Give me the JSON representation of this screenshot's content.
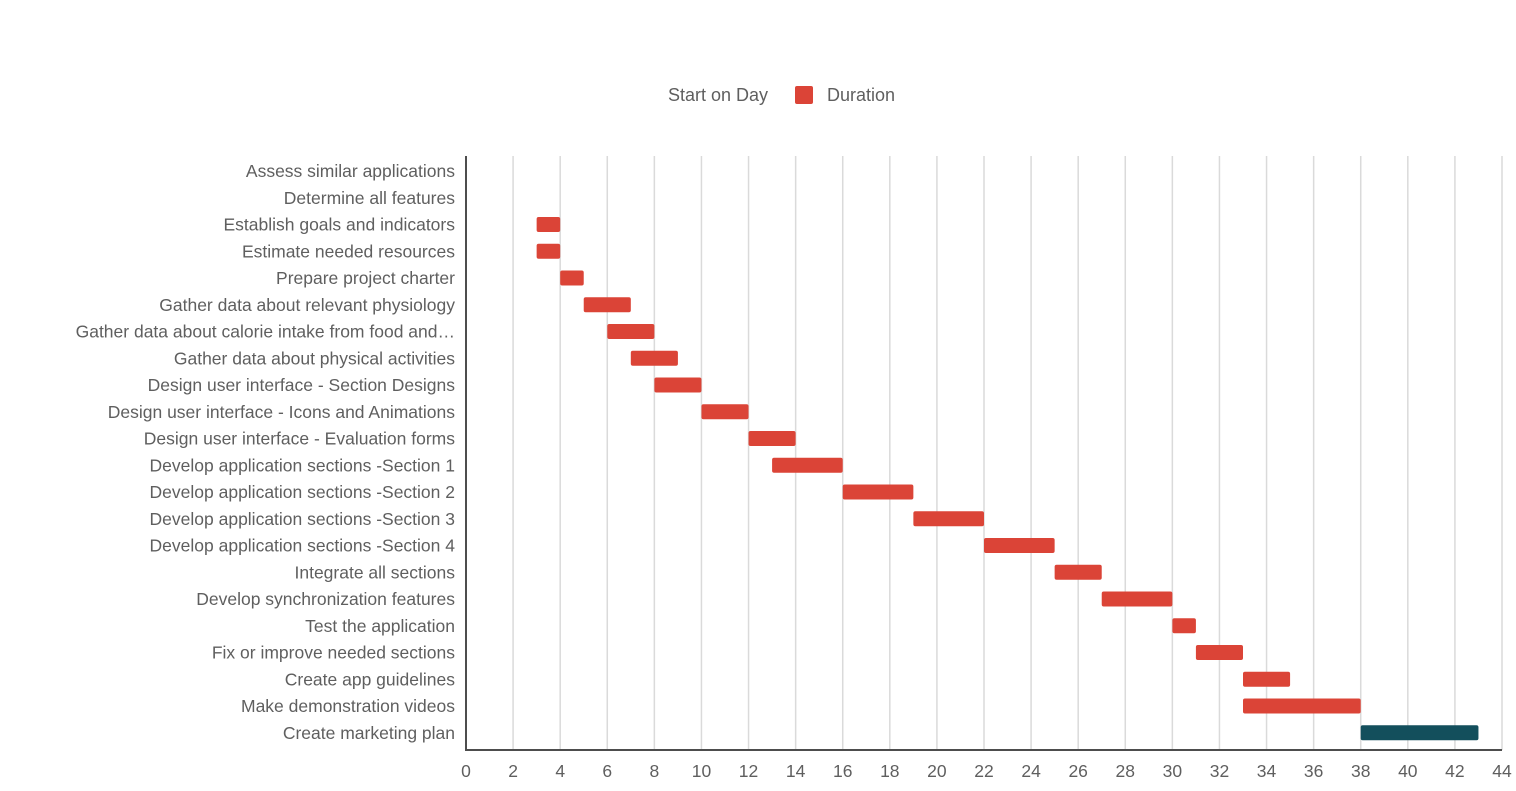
{
  "chart_data": {
    "type": "bar",
    "orientation": "horizontal",
    "stacked": true,
    "legend_position": "top",
    "grid": true,
    "xlim": [
      0,
      44
    ],
    "x_ticks": [
      0,
      2,
      4,
      6,
      8,
      10,
      12,
      14,
      16,
      18,
      20,
      22,
      24,
      26,
      28,
      30,
      32,
      34,
      36,
      38,
      40,
      42,
      44
    ],
    "categories": [
      "Assess similar applications",
      "Determine all features",
      "Establish goals and indicators",
      "Estimate needed resources",
      "Prepare project charter",
      "Gather data about relevant physiology",
      "Gather data about calorie intake from food and…",
      "Gather data about physical activities",
      "Design user interface - Section Designs",
      "Design user interface - Icons and Animations",
      "Design user interface - Evaluation forms",
      "Develop application sections -Section 1",
      "Develop application sections -Section 2",
      "Develop application sections -Section 3",
      "Develop application sections -Section 4",
      "Integrate all sections",
      "Develop synchronization features",
      "Test the application",
      "Fix or improve needed sections",
      "Create app guidelines",
      "Make demonstration videos",
      "Create marketing plan"
    ],
    "series": [
      {
        "name": "Start on Day",
        "color": "transparent",
        "values": [
          0,
          0,
          3,
          3,
          4,
          5,
          6,
          7,
          8,
          10,
          12,
          13,
          16,
          19,
          22,
          25,
          27,
          30,
          31,
          33,
          33,
          38
        ]
      },
      {
        "name": "Duration",
        "color": "#db4437",
        "values": [
          0,
          0,
          1,
          1,
          1,
          2,
          2,
          2,
          2,
          2,
          2,
          3,
          3,
          3,
          3,
          2,
          3,
          1,
          2,
          2,
          5,
          5
        ]
      }
    ],
    "highlighted_bar": {
      "index": 21,
      "color": "#134f5c"
    }
  }
}
